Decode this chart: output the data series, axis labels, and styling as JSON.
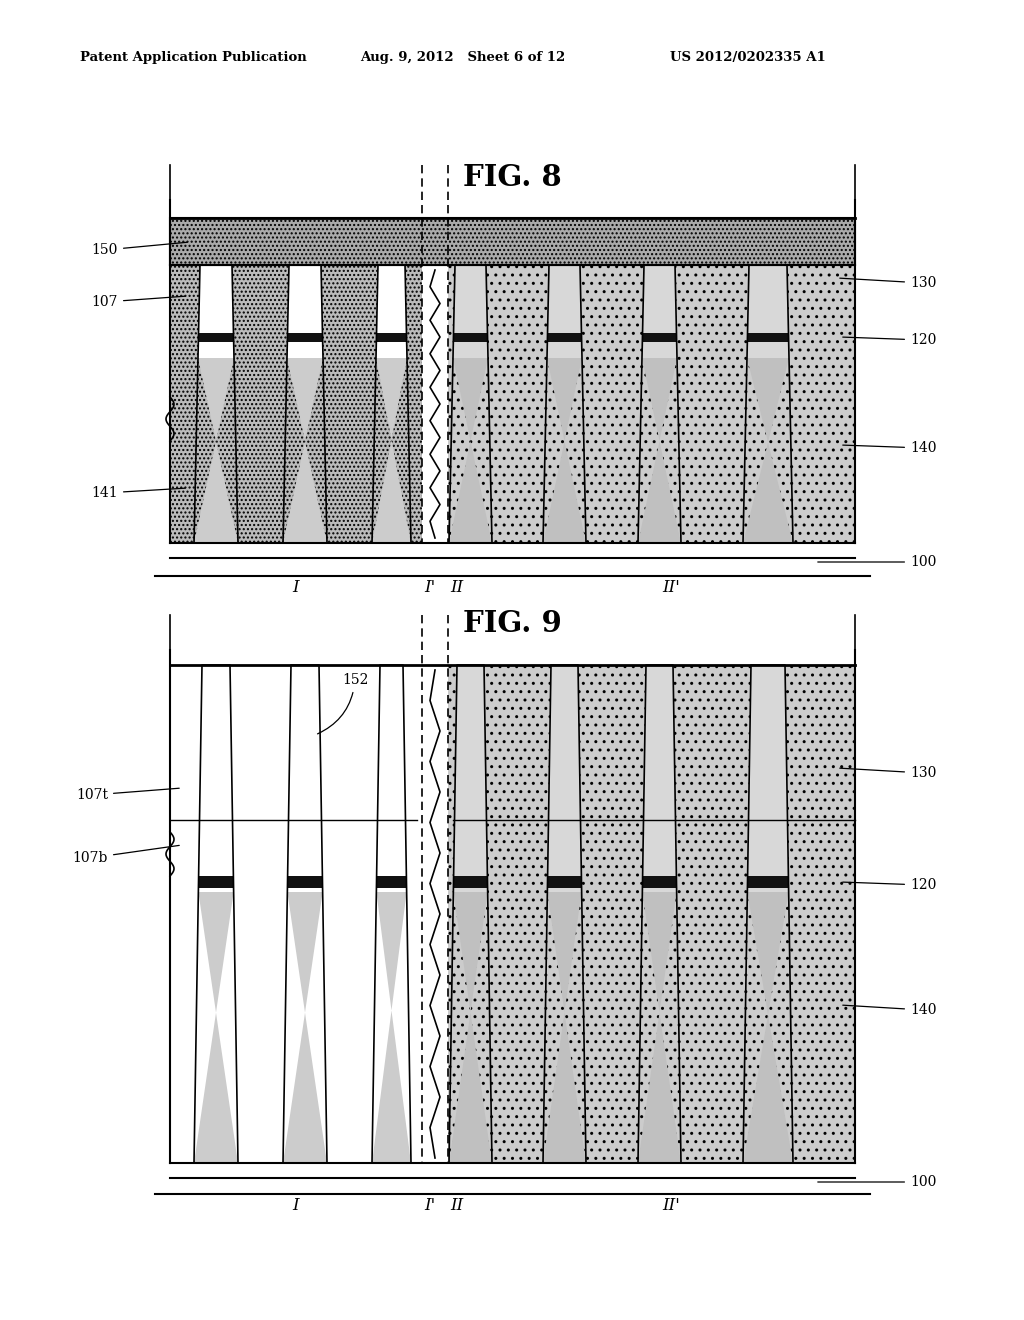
{
  "header_left": "Patent Application Publication",
  "header_mid": "Aug. 9, 2012   Sheet 6 of 12",
  "header_right": "US 2012/0202335 A1",
  "fig8_title": "FIG. 8",
  "fig9_title": "FIG. 9",
  "bg_color": "#ffffff"
}
